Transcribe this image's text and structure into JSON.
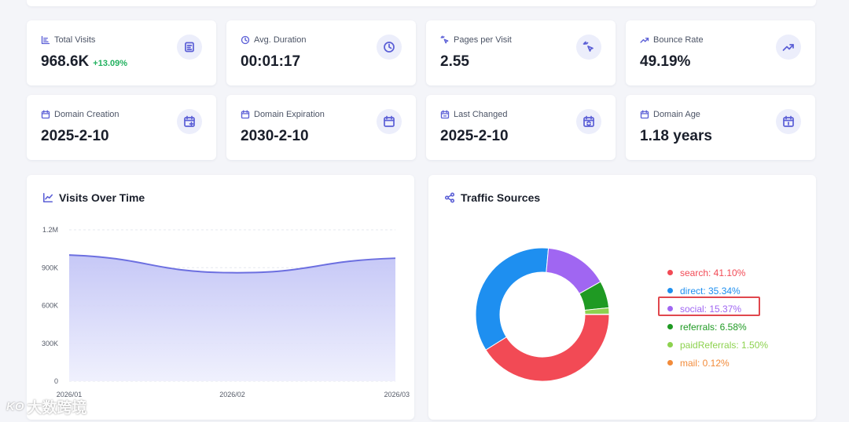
{
  "stats": [
    {
      "label": "Total Visits",
      "value": "968.6K",
      "change": "+13.09%",
      "icon": "bar-chart-icon"
    },
    {
      "label": "Avg. Duration",
      "value": "00:01:17",
      "icon": "clock-icon"
    },
    {
      "label": "Pages per Visit",
      "value": "2.55",
      "icon": "pointer-click-icon"
    },
    {
      "label": "Bounce Rate",
      "value": "49.19%",
      "icon": "trending-up-icon"
    },
    {
      "label": "Domain Creation",
      "value": "2025-2-10",
      "icon": "calendar-plus-icon"
    },
    {
      "label": "Domain Expiration",
      "value": "2030-2-10",
      "icon": "calendar-icon"
    },
    {
      "label": "Last Changed",
      "value": "2025-2-10",
      "icon": "calendar-sync-icon"
    },
    {
      "label": "Domain Age",
      "value": "1.18 years",
      "icon": "calendar-days-icon"
    }
  ],
  "visits_panel": {
    "title": "Visits Over Time",
    "icon": "line-chart-icon"
  },
  "traffic_panel": {
    "title": "Traffic Sources",
    "icon": "share-icon"
  },
  "watermark": {
    "logo": "KO",
    "text": "大数跨境"
  },
  "chart_data": [
    {
      "type": "area",
      "title": "Visits Over Time",
      "x": [
        "2026/01",
        "2026/02",
        "2026/03"
      ],
      "y_ticks": [
        "0",
        "300K",
        "600K",
        "900K",
        "1.2M"
      ],
      "ylim": [
        0,
        1200000
      ],
      "values": [
        1000000,
        860000,
        975000
      ],
      "color": "#6c6fe0",
      "fill_color": "#c7c9f6",
      "grid": true
    },
    {
      "type": "pie",
      "title": "Traffic Sources",
      "donut": true,
      "legend_position": "right",
      "slices": [
        {
          "name": "search",
          "value": 41.1,
          "label": "search: 41.10%",
          "color": "#f24a55"
        },
        {
          "name": "direct",
          "value": 35.34,
          "label": "direct: 35.34%",
          "color": "#1e8ff0"
        },
        {
          "name": "social",
          "value": 15.37,
          "label": "social: 15.37%",
          "color": "#a066f2"
        },
        {
          "name": "referrals",
          "value": 6.58,
          "label": "referrals: 6.58%",
          "color": "#1f9a23"
        },
        {
          "name": "paidReferrals",
          "value": 1.5,
          "label": "paidReferrals: 1.50%",
          "color": "#8dd24f"
        },
        {
          "name": "mail",
          "value": 0.12,
          "label": "mail: 0.12%",
          "color": "#f28b3a"
        }
      ],
      "highlighted": "social"
    }
  ]
}
